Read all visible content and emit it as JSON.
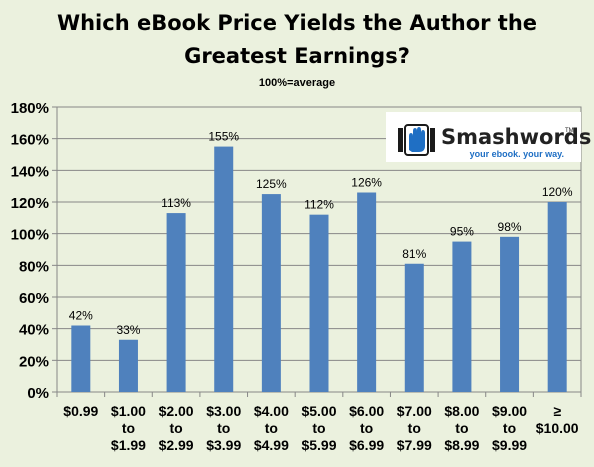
{
  "chart_data": {
    "type": "bar",
    "title_line1": "Which eBook Price Yields the Author the",
    "title_line2": "Greatest Earnings?",
    "subtitle": "100%=average",
    "categories": [
      [
        "$0.99"
      ],
      [
        "$1.00",
        "to",
        "$1.99"
      ],
      [
        "$2.00",
        "to",
        "$2.99"
      ],
      [
        "$3.00",
        "to",
        "$3.99"
      ],
      [
        "$4.00",
        "to",
        "$4.99"
      ],
      [
        "$5.00",
        "to",
        "$5.99"
      ],
      [
        "$6.00",
        "to",
        "$6.99"
      ],
      [
        "$7.00",
        "to",
        "$7.99"
      ],
      [
        "$8.00",
        "to",
        "$8.99"
      ],
      [
        "$9.00",
        "to",
        "$9.99"
      ],
      [
        "≥",
        "$10.00"
      ]
    ],
    "values": [
      42,
      33,
      113,
      155,
      125,
      112,
      126,
      81,
      95,
      98,
      120
    ],
    "data_labels": [
      "42%",
      "33%",
      "113%",
      "155%",
      "125%",
      "112%",
      "126%",
      "81%",
      "95%",
      "98%",
      "120%"
    ],
    "y_ticks": [
      0,
      20,
      40,
      60,
      80,
      100,
      120,
      140,
      160,
      180
    ],
    "y_tick_labels": [
      "0%",
      "20%",
      "40%",
      "60%",
      "80%",
      "100%",
      "120%",
      "140%",
      "160%",
      "180%"
    ],
    "ylim": [
      0,
      180
    ],
    "grid": "horizontal",
    "legend": "none",
    "bar_color": "#4f81bd",
    "grid_color": "#878787"
  },
  "logo": {
    "name": "Smashwords",
    "trademark": "TM",
    "tagline": "your ebook. your way.",
    "name_color": "#222222",
    "tagline_color": "#1f6fc4",
    "icon": "smashwords-hand-icon"
  }
}
